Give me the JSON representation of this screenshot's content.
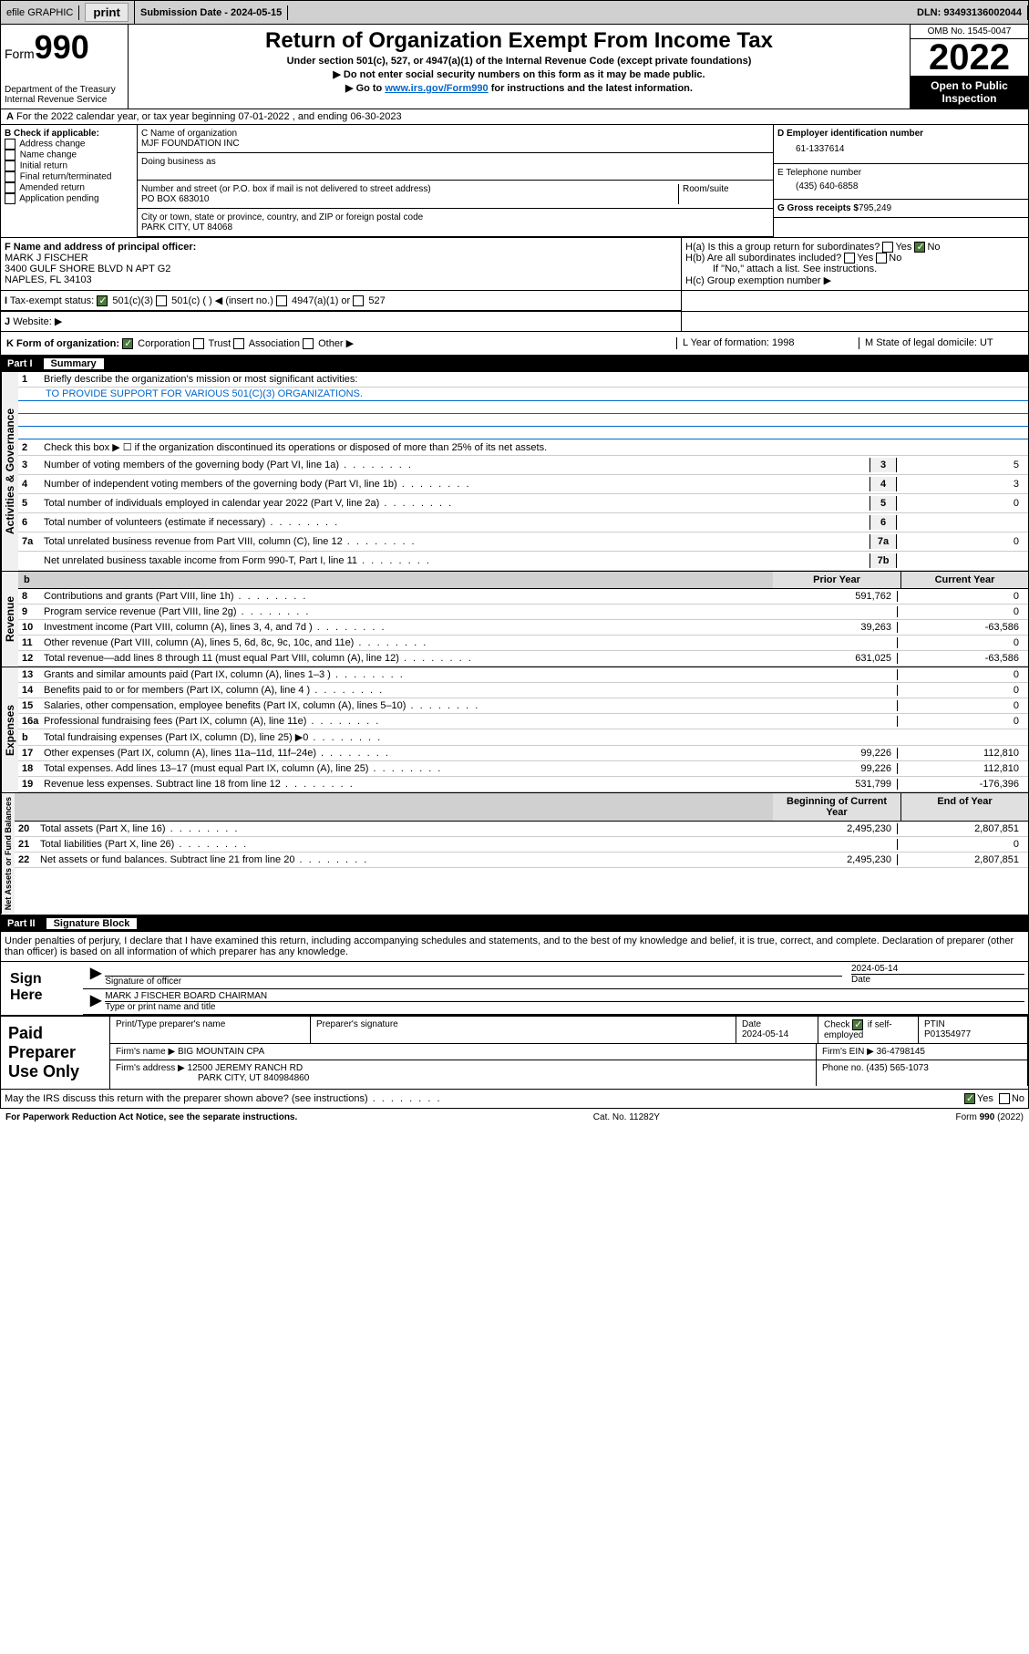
{
  "topbar": {
    "efile": "efile GRAPHIC",
    "print": "print",
    "subdate_label": "Submission Date - 2024-05-15",
    "dln": "DLN: 93493136002044"
  },
  "header": {
    "form_prefix": "Form",
    "form_num": "990",
    "dept": "Department of the Treasury",
    "irs": "Internal Revenue Service",
    "title": "Return of Organization Exempt From Income Tax",
    "sub1": "Under section 501(c), 527, or 4947(a)(1) of the Internal Revenue Code (except private foundations)",
    "sub2": "▶ Do not enter social security numbers on this form as it may be made public.",
    "sub3_pre": "▶ Go to ",
    "sub3_link": "www.irs.gov/Form990",
    "sub3_post": " for instructions and the latest information.",
    "omb": "OMB No. 1545-0047",
    "year": "2022",
    "open": "Open to Public Inspection"
  },
  "rowA": "For the 2022 calendar year, or tax year beginning 07-01-2022    , and ending 06-30-2023",
  "colB": {
    "hdr": "B Check if applicable:",
    "items": [
      "Address change",
      "Name change",
      "Initial return",
      "Final return/terminated",
      "Amended return",
      "Application pending"
    ]
  },
  "colC": {
    "name_lbl": "C Name of organization",
    "name": "MJF FOUNDATION INC",
    "dba_lbl": "Doing business as",
    "addr_lbl": "Number and street (or P.O. box if mail is not delivered to street address)",
    "room_lbl": "Room/suite",
    "addr": "PO BOX 683010",
    "city_lbl": "City or town, state or province, country, and ZIP or foreign postal code",
    "city": "PARK CITY, UT  84068"
  },
  "colD": {
    "d_lbl": "D Employer identification number",
    "d_val": "61-1337614",
    "e_lbl": "E Telephone number",
    "e_val": "(435) 640-6858",
    "g_lbl": "G Gross receipts $",
    "g_val": "795,249"
  },
  "rowF": {
    "lbl": "F Name and address of principal officer:",
    "name": "MARK J FISCHER",
    "addr1": "3400 GULF SHORE BLVD N APT G2",
    "addr2": "NAPLES, FL  34103"
  },
  "rowH": {
    "ha": "H(a)  Is this a group return for subordinates?",
    "hb": "H(b)  Are all subordinates included?",
    "hb_note": "If \"No,\" attach a list. See instructions.",
    "hc": "H(c)  Group exemption number ▶"
  },
  "rowI": {
    "lbl": "Tax-exempt status:",
    "o1": "501(c)(3)",
    "o2": "501(c) (   ) ◀ (insert no.)",
    "o3": "4947(a)(1) or",
    "o4": "527"
  },
  "rowJ": "Website: ▶",
  "rowK": "K Form of organization:",
  "rowK_opts": [
    "Corporation",
    "Trust",
    "Association",
    "Other ▶"
  ],
  "rowL": "L Year of formation: 1998",
  "rowM": "M State of legal domicile: UT",
  "part1": {
    "hdr": "Part I",
    "title": "Summary",
    "l1": "Briefly describe the organization's mission or most significant activities:",
    "mission": "TO PROVIDE SUPPORT FOR VARIOUS 501(C)(3) ORGANIZATIONS.",
    "l2": "Check this box ▶ ☐  if the organization discontinued its operations or disposed of more than 25% of its net assets.",
    "lines_gov": [
      {
        "n": "3",
        "t": "Number of voting members of the governing body (Part VI, line 1a)",
        "b": "3",
        "v": "5"
      },
      {
        "n": "4",
        "t": "Number of independent voting members of the governing body (Part VI, line 1b)",
        "b": "4",
        "v": "3"
      },
      {
        "n": "5",
        "t": "Total number of individuals employed in calendar year 2022 (Part V, line 2a)",
        "b": "5",
        "v": "0"
      },
      {
        "n": "6",
        "t": "Total number of volunteers (estimate if necessary)",
        "b": "6",
        "v": ""
      },
      {
        "n": "7a",
        "t": "Total unrelated business revenue from Part VIII, column (C), line 12",
        "b": "7a",
        "v": "0"
      },
      {
        "n": "",
        "t": "Net unrelated business taxable income from Form 990-T, Part I, line 11",
        "b": "7b",
        "v": ""
      }
    ],
    "col_prior": "Prior Year",
    "col_curr": "Current Year",
    "lines_rev": [
      {
        "n": "8",
        "t": "Contributions and grants (Part VIII, line 1h)",
        "p": "591,762",
        "c": "0"
      },
      {
        "n": "9",
        "t": "Program service revenue (Part VIII, line 2g)",
        "p": "",
        "c": "0"
      },
      {
        "n": "10",
        "t": "Investment income (Part VIII, column (A), lines 3, 4, and 7d )",
        "p": "39,263",
        "c": "-63,586"
      },
      {
        "n": "11",
        "t": "Other revenue (Part VIII, column (A), lines 5, 6d, 8c, 9c, 10c, and 11e)",
        "p": "",
        "c": "0"
      },
      {
        "n": "12",
        "t": "Total revenue—add lines 8 through 11 (must equal Part VIII, column (A), line 12)",
        "p": "631,025",
        "c": "-63,586"
      }
    ],
    "lines_exp": [
      {
        "n": "13",
        "t": "Grants and similar amounts paid (Part IX, column (A), lines 1–3 )",
        "p": "",
        "c": "0"
      },
      {
        "n": "14",
        "t": "Benefits paid to or for members (Part IX, column (A), line 4 )",
        "p": "",
        "c": "0"
      },
      {
        "n": "15",
        "t": "Salaries, other compensation, employee benefits (Part IX, column (A), lines 5–10)",
        "p": "",
        "c": "0"
      },
      {
        "n": "16a",
        "t": "Professional fundraising fees (Part IX, column (A), line 11e)",
        "p": "",
        "c": "0"
      },
      {
        "n": "b",
        "t": "Total fundraising expenses (Part IX, column (D), line 25) ▶0",
        "p": "grey",
        "c": "grey"
      },
      {
        "n": "17",
        "t": "Other expenses (Part IX, column (A), lines 11a–11d, 11f–24e)",
        "p": "99,226",
        "c": "112,810"
      },
      {
        "n": "18",
        "t": "Total expenses. Add lines 13–17 (must equal Part IX, column (A), line 25)",
        "p": "99,226",
        "c": "112,810"
      },
      {
        "n": "19",
        "t": "Revenue less expenses. Subtract line 18 from line 12",
        "p": "531,799",
        "c": "-176,396"
      }
    ],
    "col_beg": "Beginning of Current Year",
    "col_end": "End of Year",
    "lines_net": [
      {
        "n": "20",
        "t": "Total assets (Part X, line 16)",
        "p": "2,495,230",
        "c": "2,807,851"
      },
      {
        "n": "21",
        "t": "Total liabilities (Part X, line 26)",
        "p": "",
        "c": "0"
      },
      {
        "n": "22",
        "t": "Net assets or fund balances. Subtract line 21 from line 20",
        "p": "2,495,230",
        "c": "2,807,851"
      }
    ],
    "side_gov": "Activities & Governance",
    "side_rev": "Revenue",
    "side_exp": "Expenses",
    "side_net": "Net Assets or Fund Balances"
  },
  "part2": {
    "hdr": "Part II",
    "title": "Signature Block",
    "decl": "Under penalties of perjury, I declare that I have examined this return, including accompanying schedules and statements, and to the best of my knowledge and belief, it is true, correct, and complete. Declaration of preparer (other than officer) is based on all information of which preparer has any knowledge.",
    "sign_here": "Sign Here",
    "sig_officer": "Signature of officer",
    "sig_date": "2024-05-14",
    "date_lbl": "Date",
    "officer_name": "MARK J FISCHER BOARD CHAIRMAN",
    "officer_lbl": "Type or print name and title",
    "paid": "Paid Preparer Use Only",
    "prep_name_lbl": "Print/Type preparer's name",
    "prep_sig_lbl": "Preparer's signature",
    "prep_date_lbl": "Date",
    "prep_date": "2024-05-14",
    "check_lbl": "Check",
    "self_emp": "if self-employed",
    "ptin_lbl": "PTIN",
    "ptin": "P01354977",
    "firm_name_lbl": "Firm's name    ▶",
    "firm_name": "BIG MOUNTAIN CPA",
    "firm_ein_lbl": "Firm's EIN ▶",
    "firm_ein": "36-4798145",
    "firm_addr_lbl": "Firm's address ▶",
    "firm_addr1": "12500 JEREMY RANCH RD",
    "firm_addr2": "PARK CITY, UT  840984860",
    "phone_lbl": "Phone no.",
    "phone": "(435) 565-1073",
    "discuss": "May the IRS discuss this return with the preparer shown above? (see instructions)"
  },
  "footer": {
    "left": "For Paperwork Reduction Act Notice, see the separate instructions.",
    "mid": "Cat. No. 11282Y",
    "right": "Form 990 (2022)"
  }
}
